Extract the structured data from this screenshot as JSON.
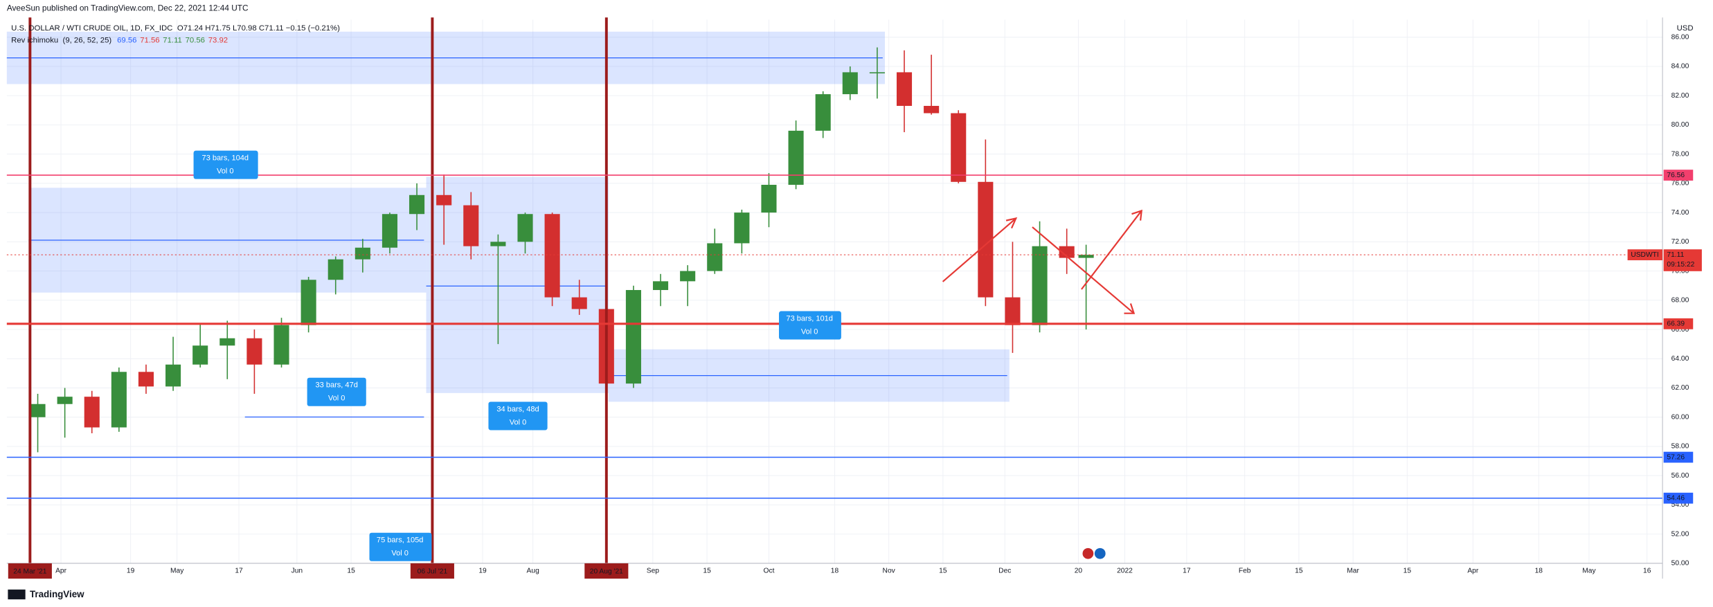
{
  "header": {
    "published": "AveeSun published on TradingView.com, Dec 22, 2021 12:44 UTC",
    "symbol": "U.S. DOLLAR / WTI CRUDE OIL, 1D, FX_IDC",
    "quote": "O71.24 H71.75 L70.98 C71.11 −0.15 (−0.21%)"
  },
  "indicator": {
    "name": "Rev ichimoku",
    "params": "(9, 26, 52, 25)",
    "values": [
      69.56,
      71.56,
      71.11,
      70.56,
      73.92
    ],
    "colors": [
      "#2962ff",
      "#e53935",
      "#388e3c",
      "#388e3c",
      "#e53935"
    ]
  },
  "chart_data": {
    "type": "candlestick",
    "currency": "USD",
    "symbol_label": "USDWTI",
    "countdown": "09:15:22",
    "x": [
      "2021-03-26",
      "2021-04-02",
      "2021-04-09",
      "2021-04-16",
      "2021-04-23",
      "2021-04-30",
      "2021-05-07",
      "2021-05-14",
      "2021-05-21",
      "2021-05-28",
      "2021-06-04",
      "2021-06-11",
      "2021-06-18",
      "2021-06-25",
      "2021-07-02",
      "2021-07-09",
      "2021-07-16",
      "2021-07-23",
      "2021-07-30",
      "2021-08-06",
      "2021-08-13",
      "2021-08-20",
      "2021-08-27",
      "2021-09-03",
      "2021-09-10",
      "2021-09-17",
      "2021-09-24",
      "2021-10-01",
      "2021-10-08",
      "2021-10-15",
      "2021-10-22",
      "2021-10-29",
      "2021-11-05",
      "2021-11-12",
      "2021-11-19",
      "2021-11-26",
      "2021-12-03",
      "2021-12-10",
      "2021-12-17",
      "2021-12-22"
    ],
    "open": [
      60.0,
      60.9,
      61.4,
      59.3,
      63.1,
      62.1,
      63.6,
      64.9,
      65.4,
      63.6,
      66.3,
      69.4,
      70.8,
      71.6,
      73.9,
      75.2,
      74.5,
      71.7,
      72.0,
      73.9,
      68.2,
      67.4,
      62.3,
      68.7,
      69.3,
      70.0,
      71.9,
      74.0,
      75.9,
      79.6,
      82.1,
      83.6,
      83.6,
      81.3,
      80.8,
      76.1,
      68.2,
      66.3,
      71.7,
      70.9
    ],
    "high": [
      61.6,
      62.0,
      61.8,
      63.4,
      63.6,
      65.5,
      66.4,
      66.6,
      66.0,
      66.8,
      69.6,
      71.0,
      72.2,
      74.0,
      76.0,
      76.6,
      75.4,
      72.5,
      74.0,
      74.0,
      69.4,
      68.0,
      69.0,
      69.8,
      70.4,
      72.9,
      74.2,
      76.7,
      80.3,
      82.3,
      84.0,
      85.3,
      85.1,
      84.8,
      81.0,
      79.0,
      72.0,
      73.4,
      72.9,
      71.8
    ],
    "low": [
      57.6,
      58.6,
      58.9,
      59.0,
      61.6,
      61.8,
      63.4,
      62.6,
      61.6,
      63.4,
      65.8,
      68.4,
      69.9,
      71.2,
      72.8,
      71.8,
      70.8,
      65.0,
      71.2,
      67.6,
      67.0,
      61.8,
      62.0,
      67.6,
      67.6,
      69.8,
      71.2,
      73.0,
      75.6,
      79.1,
      81.7,
      81.8,
      79.5,
      80.7,
      76.0,
      67.6,
      64.4,
      65.8,
      69.8,
      66.0
    ],
    "close": [
      60.9,
      61.4,
      59.3,
      63.1,
      62.1,
      63.6,
      64.9,
      65.4,
      63.6,
      66.3,
      69.4,
      70.8,
      71.6,
      73.9,
      75.2,
      74.5,
      71.7,
      72.0,
      73.9,
      68.2,
      67.4,
      62.3,
      68.7,
      69.3,
      70.0,
      71.9,
      74.0,
      75.9,
      79.6,
      82.1,
      83.6,
      83.6,
      81.3,
      80.8,
      76.1,
      68.2,
      66.3,
      71.7,
      70.9,
      71.11
    ],
    "up_color": "#388e3c",
    "down_color": "#d32f2f",
    "xlim": [
      "2021-03-18",
      "2022-05-20"
    ],
    "xticks": [
      {
        "value": "2021-04-01",
        "label": "Apr"
      },
      {
        "value": "2021-04-19",
        "label": "19"
      },
      {
        "value": "2021-05-01",
        "label": "May"
      },
      {
        "value": "2021-05-17",
        "label": "17"
      },
      {
        "value": "2021-06-01",
        "label": "Jun"
      },
      {
        "value": "2021-06-15",
        "label": "15"
      },
      {
        "value": "2021-07-19",
        "label": "19"
      },
      {
        "value": "2021-08-01",
        "label": "Aug"
      },
      {
        "value": "2021-09-01",
        "label": "Sep"
      },
      {
        "value": "2021-09-15",
        "label": "15"
      },
      {
        "value": "2021-10-01",
        "label": "Oct"
      },
      {
        "value": "2021-10-18",
        "label": "18"
      },
      {
        "value": "2021-11-01",
        "label": "Nov"
      },
      {
        "value": "2021-11-15",
        "label": "15"
      },
      {
        "value": "2021-12-01",
        "label": "Dec"
      },
      {
        "value": "2021-12-20",
        "label": "20"
      },
      {
        "value": "2022-01-01",
        "label": "2022"
      },
      {
        "value": "2022-01-17",
        "label": "17"
      },
      {
        "value": "2022-02-01",
        "label": "Feb"
      },
      {
        "value": "2022-02-15",
        "label": "15"
      },
      {
        "value": "2022-03-01",
        "label": "Mar"
      },
      {
        "value": "2022-03-15",
        "label": "15"
      },
      {
        "value": "2022-04-01",
        "label": "Apr"
      },
      {
        "value": "2022-04-18",
        "label": "18"
      },
      {
        "value": "2022-05-01",
        "label": "May"
      },
      {
        "value": "2022-05-16",
        "label": "16"
      }
    ],
    "ylim": [
      50,
      87.2
    ],
    "yticks": [
      {
        "value": 50,
        "label": "50.00"
      },
      {
        "value": 52,
        "label": "52.00"
      },
      {
        "value": 54,
        "label": "54.00"
      },
      {
        "value": 56,
        "label": "56.00"
      },
      {
        "value": 58,
        "label": "58.00"
      },
      {
        "value": 60,
        "label": "60.00"
      },
      {
        "value": 62,
        "label": "62.00"
      },
      {
        "value": 64,
        "label": "64.00"
      },
      {
        "value": 66,
        "label": "66.00"
      },
      {
        "value": 68,
        "label": "68.00"
      },
      {
        "value": 70,
        "label": "70.00"
      },
      {
        "value": 72,
        "label": "72.00"
      },
      {
        "value": 74,
        "label": "74.00"
      },
      {
        "value": 76,
        "label": "76.00"
      },
      {
        "value": 78,
        "label": "78.00"
      },
      {
        "value": 80,
        "label": "80.00"
      },
      {
        "value": 82,
        "label": "82.00"
      },
      {
        "value": 84,
        "label": "84.00"
      },
      {
        "value": 86,
        "label": "86.00"
      }
    ],
    "grid": true,
    "levels": [
      {
        "value": 76.56,
        "color": "#f23f6d"
      },
      {
        "value": 66.39,
        "color": "#e53935"
      },
      {
        "value": 57.26,
        "color": "#2962ff"
      },
      {
        "value": 54.46,
        "color": "#2962ff"
      }
    ],
    "last": {
      "value": 71.11,
      "color": "#e53935"
    },
    "markers": [
      {
        "date": "2021-03-24",
        "label": "24 Mar '21"
      },
      {
        "date": "2021-07-06",
        "label": "06 Jul '21"
      },
      {
        "date": "2021-08-20",
        "label": "20 Aug '21"
      }
    ],
    "marker_color": "#9c1c1c"
  },
  "measurements": [
    {
      "bars": "73 bars, 104d",
      "vol": "Vol 0"
    },
    {
      "bars": "33 bars, 47d",
      "vol": "Vol 0"
    },
    {
      "bars": "34 bars, 48d",
      "vol": "Vol 0"
    },
    {
      "bars": "73 bars, 101d",
      "vol": "Vol 0"
    },
    {
      "bars": "75 bars, 105d",
      "vol": "Vol 0"
    }
  ],
  "footer": {
    "brand": "TradingView"
  }
}
